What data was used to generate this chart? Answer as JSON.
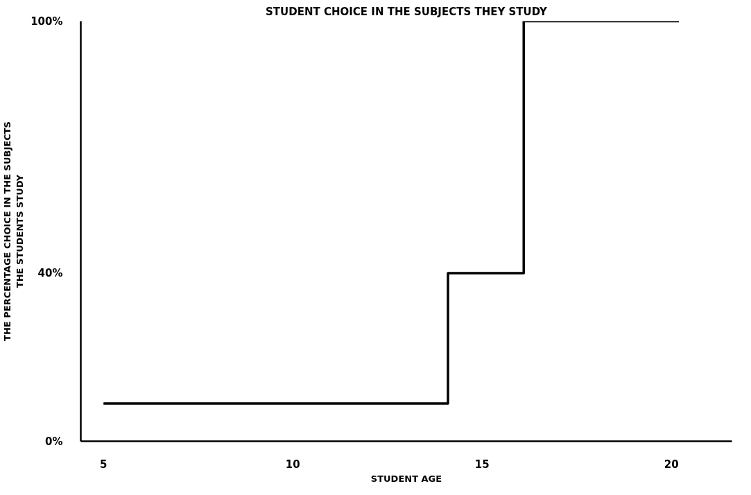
{
  "chart_data": {
    "type": "step",
    "title": "STUDENT CHOICE IN THE SUBJECTS THEY STUDY",
    "xlabel": "STUDENT AGE",
    "ylabel": "THE PERCENTAGE CHOICE IN THE SUBJECTS\nTHE STUDENTS STUDY",
    "x": [
      5,
      14.1,
      16.1,
      20.2
    ],
    "series": [
      {
        "color": "#000000",
        "values": [
          9,
          40,
          100,
          100
        ]
      }
    ],
    "xlim": [
      4.4,
      21.6
    ],
    "ylim": [
      0,
      100
    ],
    "xticks": [
      5,
      10,
      15,
      20
    ],
    "yticks": [
      {
        "value": 0,
        "label": "0%"
      },
      {
        "value": 40,
        "label": "40%"
      },
      {
        "value": 100,
        "label": "100%"
      }
    ],
    "grid": false,
    "marker": "none",
    "line_style": "solid"
  }
}
